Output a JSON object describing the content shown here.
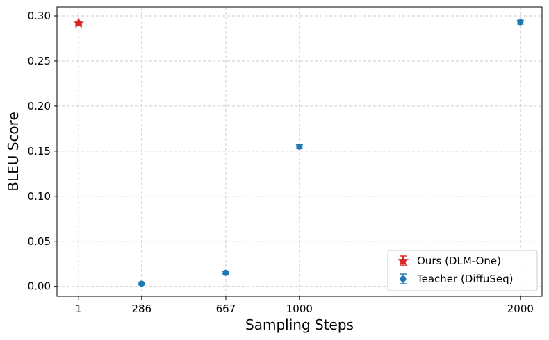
{
  "chart_data": {
    "type": "scatter",
    "title": "",
    "xlabel": "Sampling Steps",
    "ylabel": "BLEU Score",
    "xlim": [
      -97,
      2098
    ],
    "ylim": [
      -0.011,
      0.31
    ],
    "xticks": [
      1,
      286,
      667,
      1000,
      2000
    ],
    "xtick_labels": [
      "1",
      "286",
      "667",
      "1000",
      "2000"
    ],
    "yticks": [
      0.0,
      0.05,
      0.1,
      0.15,
      0.2,
      0.25,
      0.3
    ],
    "ytick_labels": [
      "0.00",
      "0.05",
      "0.10",
      "0.15",
      "0.20",
      "0.25",
      "0.30"
    ],
    "grid": true,
    "legend_position": "lower-right",
    "series": [
      {
        "name": "Ours (DLM-One)",
        "marker": "star",
        "color": "#d62728",
        "points": [
          {
            "x": 1,
            "y": 0.292,
            "err": 0.002
          }
        ]
      },
      {
        "name": "Teacher (DiffuSeq)",
        "marker": "circle",
        "color": "#1f77b4",
        "points": [
          {
            "x": 286,
            "y": 0.003,
            "err": 0.0015
          },
          {
            "x": 667,
            "y": 0.015,
            "err": 0.0015
          },
          {
            "x": 1000,
            "y": 0.155,
            "err": 0.002
          },
          {
            "x": 2000,
            "y": 0.293,
            "err": 0.002
          }
        ]
      }
    ]
  }
}
